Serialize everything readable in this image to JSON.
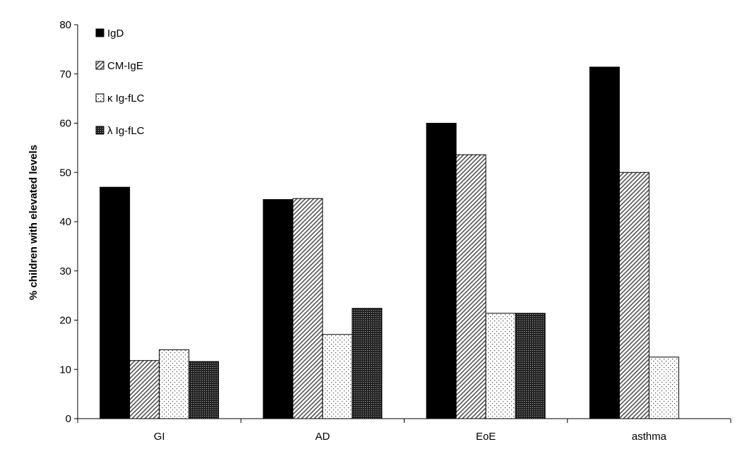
{
  "chart_data": {
    "type": "bar",
    "categories": [
      "GI",
      "AD",
      "EoE",
      "asthma"
    ],
    "series": [
      {
        "name": "IgD",
        "values": [
          47,
          44.5,
          60,
          71.4
        ]
      },
      {
        "name": "CM-IgE",
        "values": [
          11.8,
          44.7,
          53.6,
          50
        ]
      },
      {
        "name": "κ Ig-fLC",
        "values": [
          14,
          17.1,
          21.4,
          12.5
        ]
      },
      {
        "name": "λ Ig-fLC",
        "values": [
          11.6,
          22.4,
          21.4,
          null
        ]
      }
    ],
    "patterns": [
      "solid-black",
      "diagonal-hatch",
      "sparse-dots",
      "dense-dots"
    ],
    "title": "",
    "xlabel": "",
    "ylabel": "% children with elevated levels",
    "ylim": [
      0,
      80
    ],
    "yticks": [
      0,
      10,
      20,
      30,
      40,
      50,
      60,
      70,
      80
    ],
    "legend_position": "top-left",
    "grid": false
  }
}
